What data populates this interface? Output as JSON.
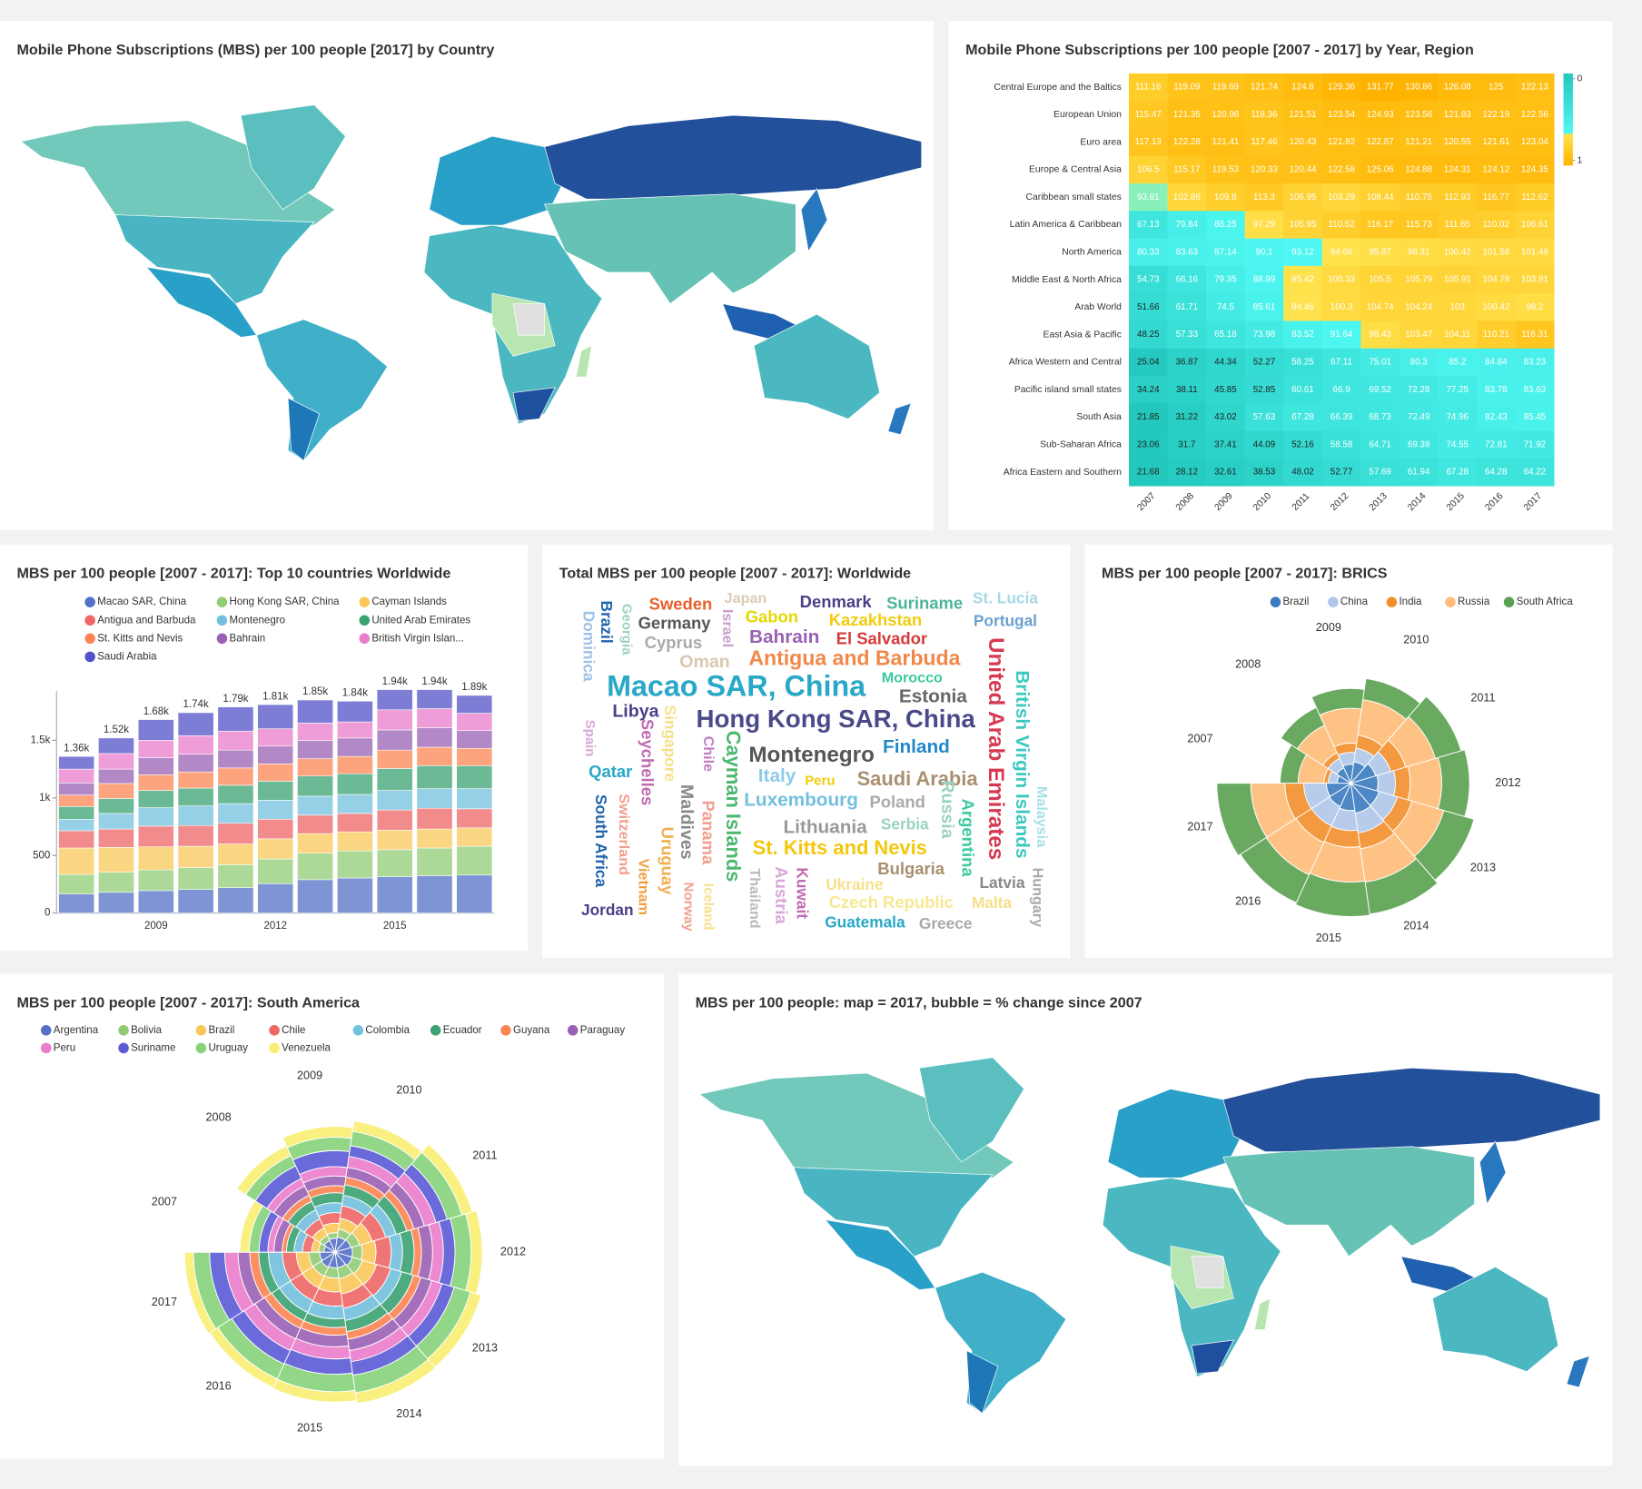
{
  "chart_data": [
    {
      "type": "choropleth",
      "title": "Mobile Phone Subscriptions (MBS) per 100 people [2017] by Country"
    },
    {
      "type": "heatmap",
      "title": "Mobile Phone Subscriptions per 100 people [2007 - 2017] by Year, Region",
      "x": [
        2007,
        2008,
        2009,
        2010,
        2011,
        2012,
        2013,
        2014,
        2015,
        2016,
        2017
      ],
      "y": [
        "Central Europe and the Baltics",
        "European Union",
        "Euro area",
        "Europe & Central Asia",
        "Caribbean small states",
        "Latin America & Caribbean",
        "North America",
        "Middle East & North Africa",
        "Arab World",
        "East Asia & Pacific",
        "Africa Western and Central",
        "Pacific island small states",
        "South Asia",
        "Sub-Saharan Africa",
        "Africa Eastern and Southern"
      ],
      "values": [
        [
          111.16,
          119.09,
          119.69,
          121.74,
          124.8,
          129.36,
          131.77,
          130.86,
          126.08,
          125,
          122.13
        ],
        [
          115.47,
          121.35,
          120.98,
          118.36,
          121.51,
          123.54,
          124.93,
          123.56,
          121.83,
          122.19,
          122.56
        ],
        [
          117.13,
          122.28,
          121.41,
          117.46,
          120.43,
          121.82,
          122.87,
          121.21,
          120.55,
          121.61,
          123.04
        ],
        [
          106.5,
          115.17,
          119.53,
          120.33,
          120.44,
          122.58,
          125.06,
          124.88,
          124.31,
          124.12,
          124.35
        ],
        [
          93.61,
          102.86,
          109.8,
          113.3,
          106.95,
          103.29,
          108.44,
          110.75,
          112.93,
          116.77,
          112.62
        ],
        [
          67.13,
          79.84,
          88.25,
          97.29,
          105.95,
          110.52,
          116.17,
          115.73,
          111.65,
          110.02,
          106.61
        ],
        [
          80.33,
          83.63,
          87.14,
          90.1,
          93.12,
          94.66,
          95.87,
          98.31,
          100.42,
          101.58,
          101.49
        ],
        [
          54.73,
          66.16,
          79.35,
          88.99,
          95.42,
          100.33,
          105.5,
          105.79,
          105.91,
          104.78,
          103.81
        ],
        [
          51.66,
          61.71,
          74.5,
          85.61,
          94.46,
          100.3,
          104.74,
          104.24,
          103,
          100.42,
          98.2
        ],
        [
          48.25,
          57.33,
          65.18,
          73.98,
          83.52,
          91.64,
          98.43,
          103.47,
          104.11,
          110.21,
          116.31
        ],
        [
          25.04,
          36.87,
          44.34,
          52.27,
          58.25,
          67.11,
          75.01,
          80.3,
          85.2,
          84.84,
          83.23
        ],
        [
          34.24,
          38.11,
          45.85,
          52.85,
          60.61,
          66.9,
          69.52,
          72.28,
          77.25,
          83.78,
          83.63
        ],
        [
          21.85,
          31.22,
          43.02,
          57.63,
          67.28,
          66.39,
          68.73,
          72.49,
          74.96,
          82.43,
          85.45
        ],
        [
          23.06,
          31.7,
          37.41,
          44.09,
          52.16,
          58.58,
          64.71,
          69.38,
          74.55,
          72.81,
          71.92
        ],
        [
          21.68,
          28.12,
          32.61,
          38.53,
          48.02,
          52.77,
          57.69,
          61.94,
          67.28,
          64.28,
          64.22
        ]
      ],
      "colorbar_ticks": [
        0,
        1
      ],
      "colorscale": [
        [
          0,
          "#22c8bc"
        ],
        [
          0.65,
          "#4ff7f2"
        ],
        [
          0.66,
          "#ffe24d"
        ],
        [
          1,
          "#ffb300"
        ]
      ]
    },
    {
      "type": "bar",
      "stacked": true,
      "title": "MBS per 100 people [2007 - 2017]: Top 10 countries Worldwide",
      "categories": [
        null,
        null,
        "2009",
        null,
        null,
        "2012",
        null,
        null,
        "2015",
        null,
        null
      ],
      "series": [
        {
          "name": "Macao SAR, China",
          "color": "#5470c6",
          "values": [
            165,
            180,
            195,
            205,
            220,
            255,
            290,
            305,
            315,
            325,
            330
          ]
        },
        {
          "name": "Hong Kong SAR, China",
          "color": "#91cc75",
          "values": [
            170,
            175,
            180,
            190,
            200,
            215,
            230,
            235,
            235,
            240,
            250
          ]
        },
        {
          "name": "Cayman Islands",
          "color": "#fac858",
          "values": [
            230,
            215,
            200,
            185,
            180,
            175,
            170,
            165,
            170,
            165,
            160
          ]
        },
        {
          "name": "Antigua and Barbuda",
          "color": "#ee6666",
          "values": [
            150,
            160,
            180,
            180,
            180,
            170,
            160,
            160,
            175,
            180,
            165
          ]
        },
        {
          "name": "Montenegro",
          "color": "#73c0de",
          "values": [
            100,
            135,
            160,
            170,
            170,
            165,
            165,
            165,
            170,
            170,
            175
          ]
        },
        {
          "name": "United Arab Emirates",
          "color": "#3ba272",
          "values": [
            110,
            130,
            150,
            155,
            160,
            165,
            175,
            180,
            190,
            200,
            200
          ]
        },
        {
          "name": "St. Kitts and Nevis",
          "color": "#fc8452",
          "values": [
            100,
            130,
            135,
            140,
            150,
            150,
            150,
            150,
            160,
            160,
            150
          ]
        },
        {
          "name": "Bahrain",
          "color": "#9a60b4",
          "values": [
            105,
            125,
            150,
            155,
            155,
            155,
            160,
            160,
            175,
            170,
            155
          ]
        },
        {
          "name": "British Virgin Islan...",
          "color": "#ea7ccc",
          "values": [
            120,
            135,
            150,
            160,
            165,
            150,
            150,
            140,
            175,
            165,
            150
          ]
        },
        {
          "name": "Saudi Arabia",
          "color": "#5252c8",
          "values": [
            110,
            135,
            180,
            200,
            210,
            210,
            200,
            180,
            175,
            165,
            155
          ]
        }
      ],
      "totals": [
        1360,
        1520,
        1680,
        1740,
        1790,
        1810,
        1850,
        1840,
        1940,
        1940,
        1890
      ],
      "total_labels": [
        "1.36k",
        "1.52k",
        "1.68k",
        "1.74k",
        "1.79k",
        "1.81k",
        "1.85k",
        "1.84k",
        "1.94k",
        "1.94k",
        "1.89k"
      ],
      "ylim": [
        0,
        2000
      ],
      "yticks": [
        0,
        500,
        {
          "value": 1000,
          "label": "1k"
        },
        {
          "value": 1500,
          "label": "1.5k"
        }
      ]
    },
    {
      "type": "wordcloud",
      "title": "Total MBS per 100 people [2007 - 2017]: Worldwide",
      "words": [
        "Sweden",
        "Japan",
        "Denmark",
        "Suriname",
        "St. Lucia",
        "Georgia",
        "Dominica",
        "Brazil",
        "Germany",
        "Gabon",
        "Kazakhstan",
        "Portugal",
        "Israel",
        "Cyprus",
        "Bahrain",
        "El Salvador",
        "United Arab Emirates",
        "British Virgin Islands",
        "Oman",
        "Antigua and Barbuda",
        "Macao SAR, China",
        "Morocco",
        "Estonia",
        "Libya",
        "Hong Kong SAR, China",
        "Singapore",
        "Seychelles",
        "Chile",
        "Cayman Islands",
        "Montenegro",
        "Finland",
        "Spain",
        "Qatar",
        "Italy",
        "Peru",
        "Saudi Arabia",
        "Malaysia",
        "Maldives",
        "Switzerland",
        "Luxembourg",
        "Poland",
        "Russia",
        "Argentina",
        "Uruguay",
        "South Africa",
        "Panama",
        "Lithuania",
        "Serbia",
        "Hungary",
        "St. Kitts and Nevis",
        "Vietnam",
        "Norway",
        "Iceland",
        "Thailand",
        "Austria",
        "Kuwait",
        "Bulgaria",
        "Latvia",
        "Ukraine",
        "Czech Republic",
        "Malta",
        "Jordan",
        "Guatemala",
        "Greece"
      ]
    },
    {
      "type": "polar-bar",
      "title": "MBS per 100 people [2007 - 2017]: BRICS",
      "categories": [
        2007,
        2008,
        2009,
        2010,
        2011,
        2012,
        2013,
        2014,
        2015,
        2016,
        2017
      ],
      "series": [
        {
          "name": "Brazil",
          "color": "#3a7bbf",
          "values": [
            63,
            78,
            87,
            100,
            119,
            125,
            135,
            139,
            126,
            118,
            113
          ]
        },
        {
          "name": "China",
          "color": "#aec7e8",
          "values": [
            41,
            47,
            55,
            63,
            72,
            80,
            88,
            92,
            92,
            97,
            104
          ]
        },
        {
          "name": "India",
          "color": "#f28e2b",
          "values": [
            20,
            29,
            43,
            61,
            72,
            68,
            70,
            74,
            77,
            85,
            87
          ]
        },
        {
          "name": "Russia",
          "color": "#ffbb78",
          "values": [
            119,
            139,
            160,
            165,
            142,
            145,
            153,
            155,
            160,
            163,
            157
          ]
        },
        {
          "name": "South Africa",
          "color": "#59a14f",
          "values": [
            83,
            90,
            91,
            98,
            124,
            128,
            145,
            149,
            159,
            142,
            156
          ]
        }
      ]
    },
    {
      "type": "polar-bar",
      "title": "MBS per 100 people [2007 - 2017]: South America",
      "categories": [
        2007,
        2008,
        2009,
        2010,
        2011,
        2012,
        2013,
        2014,
        2015,
        2016,
        2017
      ],
      "series": [
        {
          "name": "Argentina",
          "color": "#5470c6",
          "values": [
            102,
            117,
            128,
            141,
            150,
            158,
            162,
            144,
            143,
            150,
            140
          ]
        },
        {
          "name": "Bolivia",
          "color": "#91cc75",
          "values": [
            50,
            50,
            50,
            72,
            83,
            90,
            97,
            100,
            93,
            90,
            101
          ]
        },
        {
          "name": "Brazil",
          "color": "#fac858",
          "values": [
            63,
            78,
            87,
            100,
            119,
            125,
            135,
            139,
            126,
            118,
            113
          ]
        },
        {
          "name": "Chile",
          "color": "#ee6666",
          "values": [
            83,
            88,
            96,
            115,
            129,
            138,
            134,
            132,
            129,
            127,
            127
          ]
        },
        {
          "name": "Colombia",
          "color": "#73c0de",
          "values": [
            76,
            92,
            90,
            96,
            98,
            103,
            104,
            113,
            116,
            118,
            127
          ]
        },
        {
          "name": "Ecuador",
          "color": "#3ba272",
          "values": [
            69,
            85,
            91,
            97,
            102,
            106,
            111,
            103,
            80,
            84,
            88
          ]
        },
        {
          "name": "Guyana",
          "color": "#fc8452",
          "values": [
            39,
            60,
            65,
            70,
            68,
            66,
            70,
            70,
            69,
            75,
            82
          ]
        },
        {
          "name": "Paraguay",
          "color": "#9a60b4",
          "values": [
            76,
            95,
            88,
            91,
            99,
            102,
            104,
            105,
            106,
            106,
            107
          ]
        },
        {
          "name": "Peru",
          "color": "#ea7ccc",
          "values": [
            55,
            73,
            85,
            100,
            110,
            98,
            98,
            102,
            110,
            117,
            121
          ]
        },
        {
          "name": "Suriname",
          "color": "#5a5ad6",
          "values": [
            80,
            126,
            146,
            100,
            106,
            106,
            116,
            125,
            140,
            135,
            138
          ]
        },
        {
          "name": "Uruguay",
          "color": "#86d37a",
          "values": [
            90,
            105,
            122,
            131,
            141,
            148,
            155,
            161,
            160,
            149,
            148
          ]
        },
        {
          "name": "Venezuela",
          "color": "#f8ee72",
          "values": [
            86,
            96,
            98,
            96,
            98,
            101,
            102,
            99,
            93,
            87,
            80
          ]
        }
      ]
    },
    {
      "type": "choropleth",
      "title": "MBS per 100 people: map = 2017, bubble = % change since 2007"
    }
  ]
}
